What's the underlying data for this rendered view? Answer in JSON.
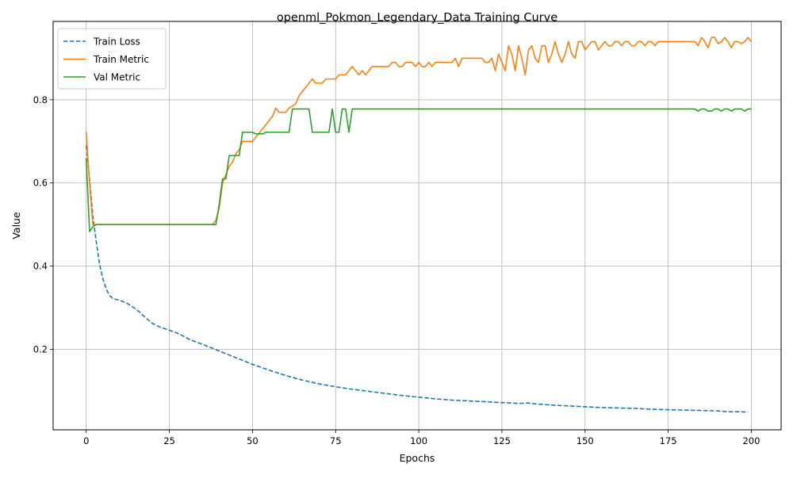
{
  "chart_data": {
    "type": "line",
    "title": "openml_Pokmon_Legendary_Data Training Curve",
    "xlabel": "Epochs",
    "ylabel": "Value",
    "xlim": [
      -9.95,
      208.95
    ],
    "ylim": [
      0.0065,
      0.9885
    ],
    "xticks": [
      0,
      25,
      50,
      75,
      100,
      125,
      150,
      175,
      200
    ],
    "yticks": [
      0.2,
      0.4,
      0.6,
      0.8
    ],
    "ytick_labels": [
      "0.2",
      "0.4",
      "0.6",
      "0.8"
    ],
    "grid": true,
    "legend_position": "top-left",
    "series": [
      {
        "name": "Train Loss",
        "color": "#1f77b4",
        "style": "dashed",
        "points": [
          [
            0,
            0.69
          ],
          [
            1,
            0.61
          ],
          [
            2,
            0.52
          ],
          [
            3,
            0.46
          ],
          [
            4,
            0.405
          ],
          [
            5,
            0.37
          ],
          [
            6,
            0.345
          ],
          [
            7,
            0.33
          ],
          [
            8,
            0.322
          ],
          [
            10,
            0.318
          ],
          [
            12,
            0.312
          ],
          [
            14,
            0.302
          ],
          [
            16,
            0.29
          ],
          [
            18,
            0.275
          ],
          [
            20,
            0.262
          ],
          [
            22,
            0.254
          ],
          [
            25,
            0.246
          ],
          [
            28,
            0.237
          ],
          [
            31,
            0.224
          ],
          [
            35,
            0.212
          ],
          [
            40,
            0.196
          ],
          [
            45,
            0.18
          ],
          [
            50,
            0.164
          ],
          [
            55,
            0.15
          ],
          [
            60,
            0.137
          ],
          [
            65,
            0.126
          ],
          [
            70,
            0.117
          ],
          [
            75,
            0.11
          ],
          [
            80,
            0.104
          ],
          [
            85,
            0.099
          ],
          [
            90,
            0.094
          ],
          [
            95,
            0.089
          ],
          [
            100,
            0.085
          ],
          [
            105,
            0.081
          ],
          [
            110,
            0.078
          ],
          [
            115,
            0.076
          ],
          [
            120,
            0.074
          ],
          [
            125,
            0.072
          ],
          [
            130,
            0.07
          ],
          [
            133,
            0.071
          ],
          [
            135,
            0.069
          ],
          [
            140,
            0.066
          ],
          [
            145,
            0.064
          ],
          [
            150,
            0.062
          ],
          [
            155,
            0.06
          ],
          [
            160,
            0.059
          ],
          [
            165,
            0.058
          ],
          [
            170,
            0.056
          ],
          [
            175,
            0.055
          ],
          [
            180,
            0.054
          ],
          [
            185,
            0.053
          ],
          [
            190,
            0.052
          ],
          [
            193,
            0.05
          ],
          [
            196,
            0.05
          ],
          [
            199,
            0.049
          ]
        ]
      },
      {
        "name": "Train Metric",
        "color": "#ff7f0e",
        "style": "solid",
        "points": [
          [
            0,
            0.723
          ],
          [
            1,
            0.6
          ],
          [
            2,
            0.5
          ],
          [
            3,
            0.5
          ],
          [
            38,
            0.5
          ],
          [
            39,
            0.51
          ],
          [
            40,
            0.54
          ],
          [
            41,
            0.6
          ],
          [
            42,
            0.62
          ],
          [
            43,
            0.64
          ],
          [
            44,
            0.65
          ],
          [
            45,
            0.67
          ],
          [
            46,
            0.68
          ],
          [
            47,
            0.7
          ],
          [
            50,
            0.7
          ],
          [
            52,
            0.72
          ],
          [
            54,
            0.74
          ],
          [
            56,
            0.76
          ],
          [
            57,
            0.78
          ],
          [
            58,
            0.77
          ],
          [
            60,
            0.77
          ],
          [
            61,
            0.78
          ],
          [
            63,
            0.79
          ],
          [
            64,
            0.81
          ],
          [
            66,
            0.83
          ],
          [
            68,
            0.85
          ],
          [
            69,
            0.84
          ],
          [
            71,
            0.84
          ],
          [
            72,
            0.85
          ],
          [
            75,
            0.85
          ],
          [
            76,
            0.86
          ],
          [
            78,
            0.86
          ],
          [
            80,
            0.88
          ],
          [
            82,
            0.86
          ],
          [
            83,
            0.87
          ],
          [
            84,
            0.86
          ],
          [
            86,
            0.88
          ],
          [
            88,
            0.88
          ],
          [
            91,
            0.88
          ],
          [
            92,
            0.89
          ],
          [
            93,
            0.89
          ],
          [
            94,
            0.88
          ],
          [
            95,
            0.88
          ],
          [
            96,
            0.89
          ],
          [
            98,
            0.89
          ],
          [
            99,
            0.88
          ],
          [
            100,
            0.89
          ],
          [
            101,
            0.88
          ],
          [
            102,
            0.88
          ],
          [
            103,
            0.89
          ],
          [
            104,
            0.88
          ],
          [
            105,
            0.89
          ],
          [
            110,
            0.89
          ],
          [
            111,
            0.9
          ],
          [
            112,
            0.88
          ],
          [
            113,
            0.9
          ],
          [
            119,
            0.9
          ],
          [
            120,
            0.89
          ],
          [
            121,
            0.89
          ],
          [
            122,
            0.9
          ],
          [
            123,
            0.87
          ],
          [
            124,
            0.91
          ],
          [
            125,
            0.89
          ],
          [
            126,
            0.87
          ],
          [
            127,
            0.93
          ],
          [
            128,
            0.91
          ],
          [
            129,
            0.87
          ],
          [
            130,
            0.93
          ],
          [
            131,
            0.9
          ],
          [
            132,
            0.86
          ],
          [
            133,
            0.92
          ],
          [
            134,
            0.93
          ],
          [
            135,
            0.9
          ],
          [
            136,
            0.89
          ],
          [
            137,
            0.93
          ],
          [
            138,
            0.93
          ],
          [
            139,
            0.89
          ],
          [
            140,
            0.91
          ],
          [
            141,
            0.94
          ],
          [
            142,
            0.91
          ],
          [
            143,
            0.89
          ],
          [
            144,
            0.91
          ],
          [
            145,
            0.94
          ],
          [
            146,
            0.91
          ],
          [
            147,
            0.9
          ],
          [
            148,
            0.94
          ],
          [
            149,
            0.94
          ],
          [
            150,
            0.92
          ],
          [
            151,
            0.93
          ],
          [
            152,
            0.94
          ],
          [
            153,
            0.94
          ],
          [
            154,
            0.92
          ],
          [
            155,
            0.93
          ],
          [
            156,
            0.94
          ],
          [
            157,
            0.93
          ],
          [
            158,
            0.93
          ],
          [
            159,
            0.94
          ],
          [
            160,
            0.94
          ],
          [
            161,
            0.93
          ],
          [
            162,
            0.94
          ],
          [
            163,
            0.94
          ],
          [
            164,
            0.93
          ],
          [
            165,
            0.93
          ],
          [
            166,
            0.94
          ],
          [
            167,
            0.94
          ],
          [
            168,
            0.93
          ],
          [
            169,
            0.94
          ],
          [
            170,
            0.94
          ],
          [
            171,
            0.93
          ],
          [
            172,
            0.94
          ],
          [
            180,
            0.94
          ],
          [
            183,
            0.94
          ],
          [
            184,
            0.93
          ],
          [
            185,
            0.95
          ],
          [
            186,
            0.94
          ],
          [
            187,
            0.925
          ],
          [
            188,
            0.95
          ],
          [
            189,
            0.95
          ],
          [
            190,
            0.935
          ],
          [
            191,
            0.94
          ],
          [
            192,
            0.95
          ],
          [
            193,
            0.94
          ],
          [
            194,
            0.925
          ],
          [
            195,
            0.94
          ],
          [
            196,
            0.94
          ],
          [
            197,
            0.935
          ],
          [
            198,
            0.94
          ],
          [
            199,
            0.95
          ],
          [
            200,
            0.94
          ]
        ]
      },
      {
        "name": "Val Metric",
        "color": "#2ca02c",
        "style": "solid",
        "points": [
          [
            0,
            0.66
          ],
          [
            1,
            0.483
          ],
          [
            2,
            0.495
          ],
          [
            3,
            0.5
          ],
          [
            38,
            0.5
          ],
          [
            39,
            0.5
          ],
          [
            40,
            0.55
          ],
          [
            41,
            0.61
          ],
          [
            42,
            0.61
          ],
          [
            43,
            0.666
          ],
          [
            46,
            0.666
          ],
          [
            47,
            0.722
          ],
          [
            50,
            0.722
          ],
          [
            51,
            0.718
          ],
          [
            53,
            0.718
          ],
          [
            54,
            0.722
          ],
          [
            61,
            0.722
          ],
          [
            62,
            0.778
          ],
          [
            67,
            0.778
          ],
          [
            68,
            0.722
          ],
          [
            73,
            0.722
          ],
          [
            74,
            0.778
          ],
          [
            75,
            0.722
          ],
          [
            76,
            0.722
          ],
          [
            77,
            0.778
          ],
          [
            78,
            0.778
          ],
          [
            79,
            0.722
          ],
          [
            80,
            0.778
          ],
          [
            183,
            0.778
          ],
          [
            184,
            0.773
          ],
          [
            185,
            0.778
          ],
          [
            186,
            0.778
          ],
          [
            187,
            0.773
          ],
          [
            188,
            0.773
          ],
          [
            189,
            0.778
          ],
          [
            190,
            0.778
          ],
          [
            191,
            0.773
          ],
          [
            192,
            0.778
          ],
          [
            193,
            0.778
          ],
          [
            194,
            0.773
          ],
          [
            195,
            0.778
          ],
          [
            196,
            0.778
          ],
          [
            197,
            0.778
          ],
          [
            198,
            0.773
          ],
          [
            199,
            0.778
          ],
          [
            200,
            0.778
          ]
        ]
      }
    ]
  }
}
